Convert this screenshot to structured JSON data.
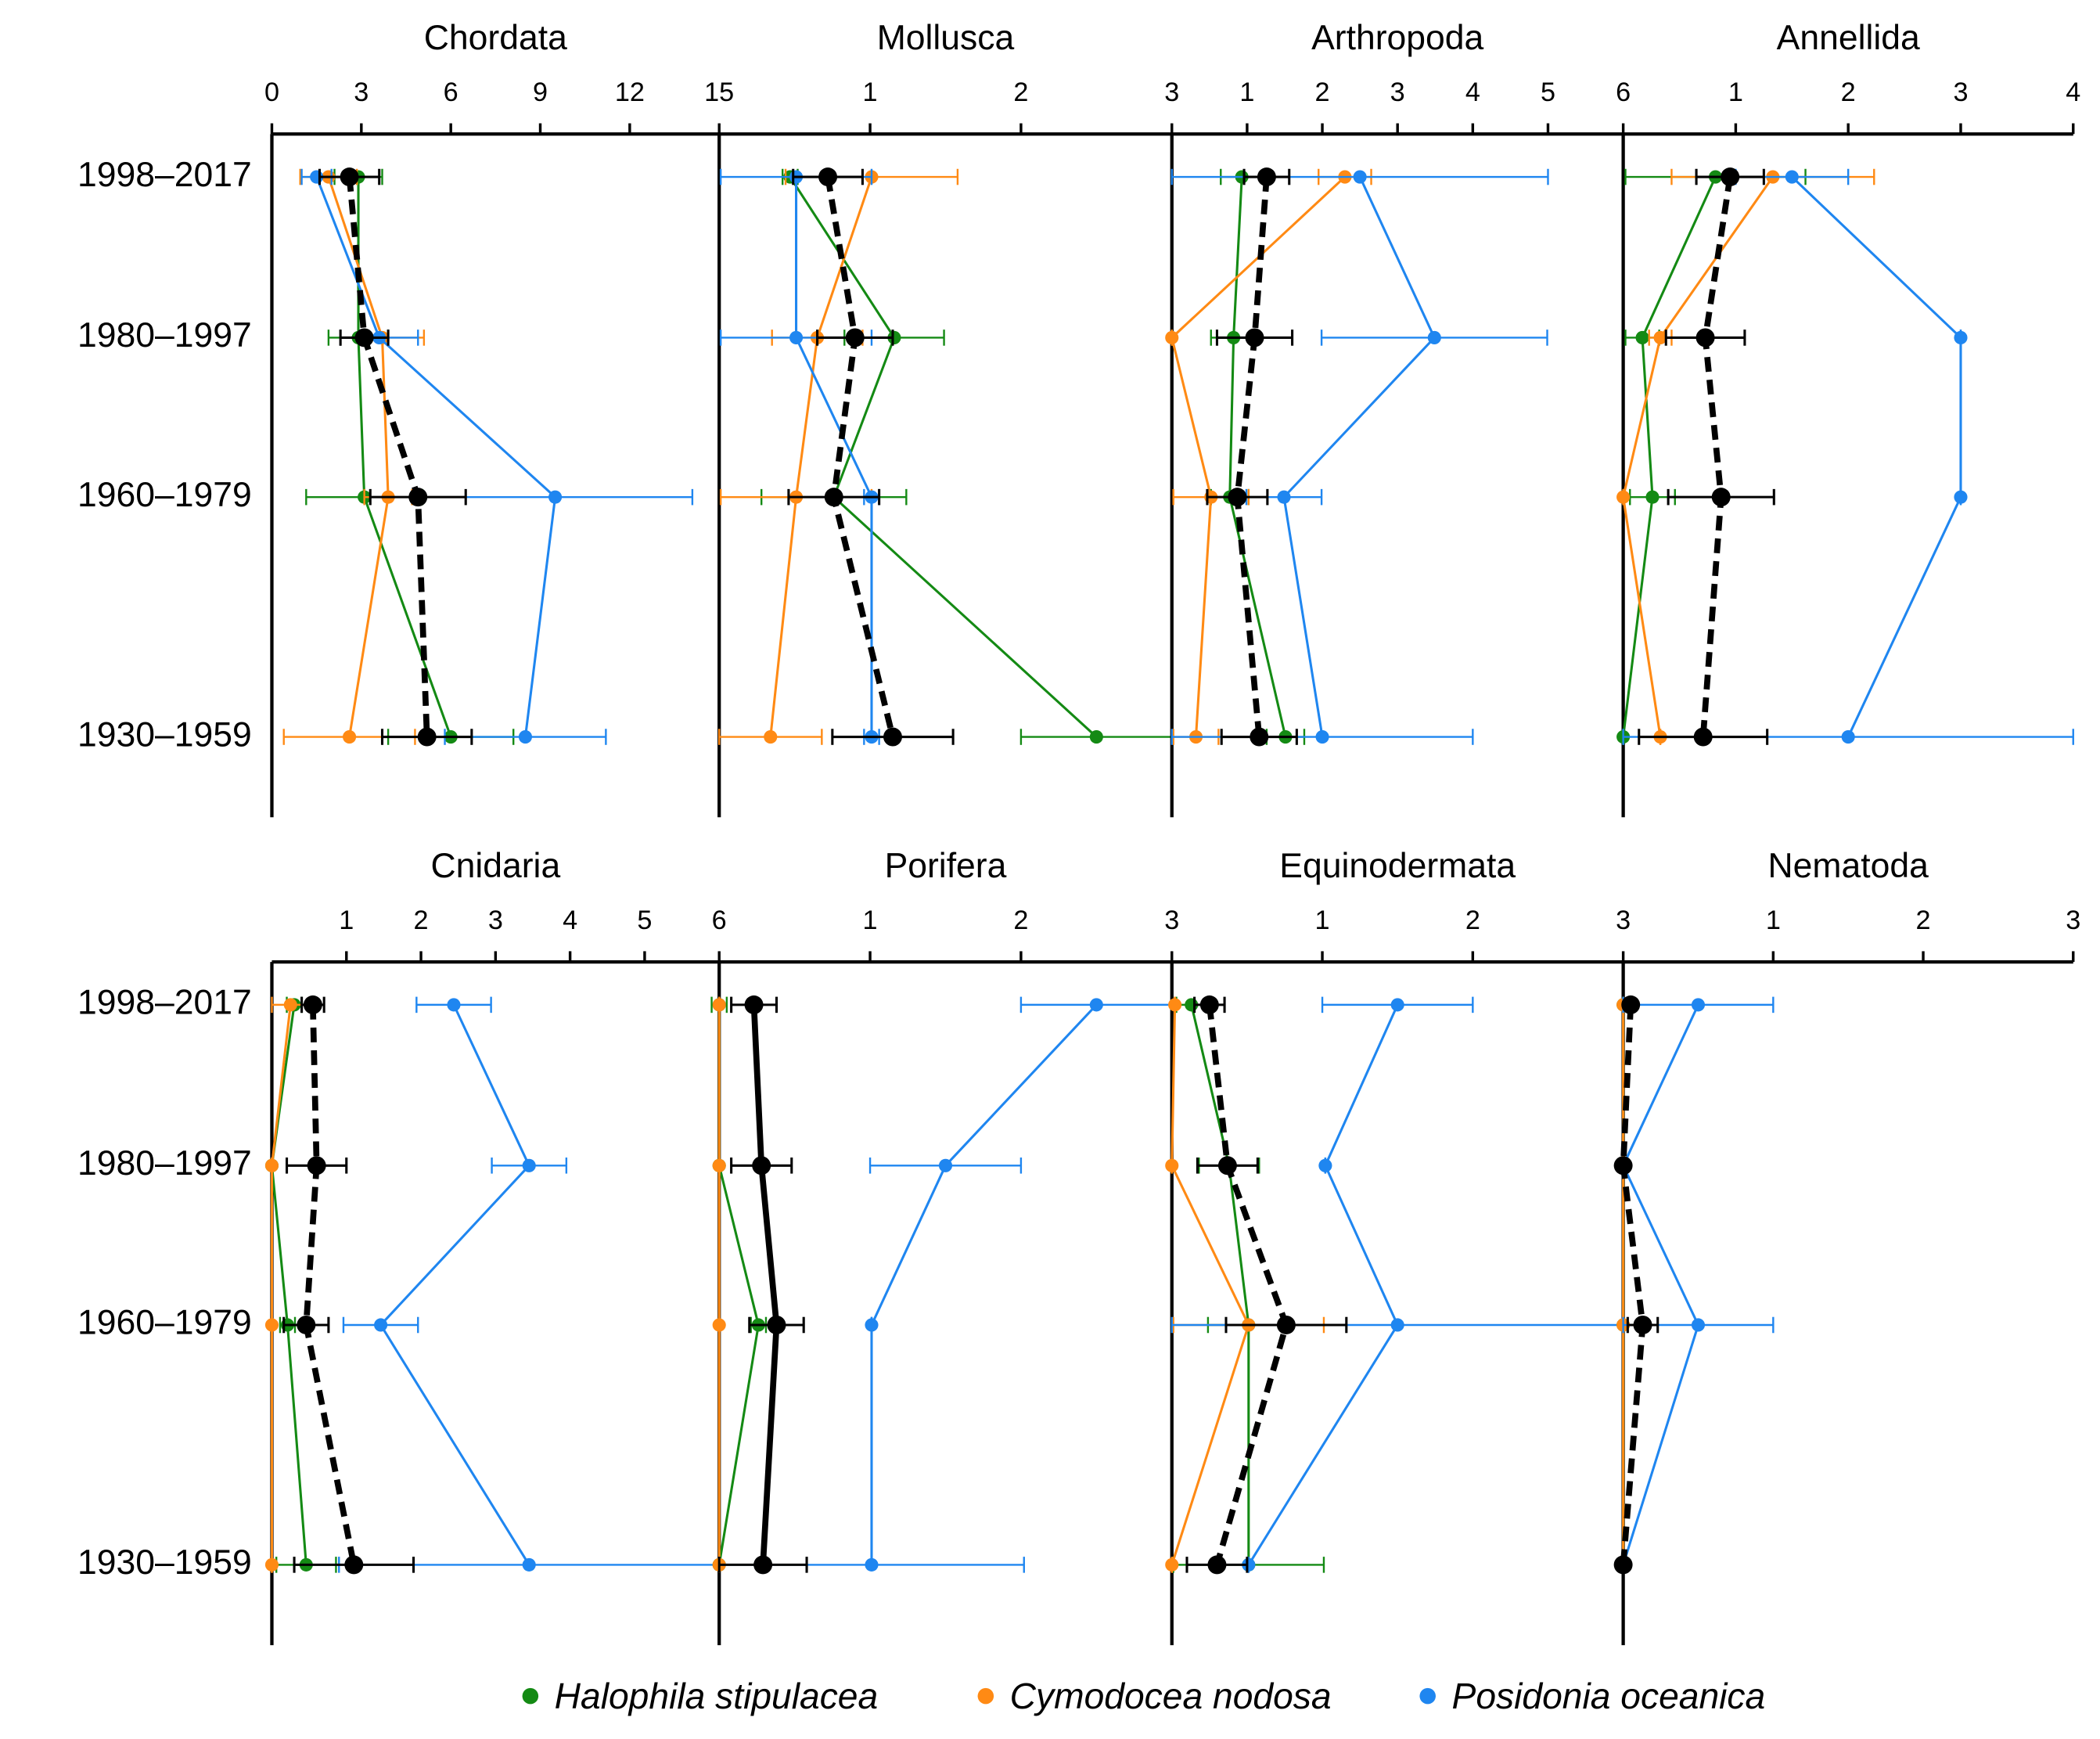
{
  "legend": [
    {
      "name": "Halophila stipulacea",
      "color": "#148a14"
    },
    {
      "name": "Cymodocea nodosa",
      "color": "#ff8a14"
    },
    {
      "name": "Posidonia oceanica",
      "color": "#1f86f0"
    }
  ],
  "chart_data": [
    {
      "type": "line",
      "title": "Chordata",
      "categories": [
        "1998–2017",
        "1980–1997",
        "1960–1979",
        "1930–1959"
      ],
      "xlim": [
        0,
        15
      ],
      "xticks": [
        0,
        3,
        6,
        9,
        12,
        15
      ],
      "series": [
        {
          "color": "#148a14",
          "values": [
            2.9,
            2.9,
            3.1,
            6.0
          ],
          "errors": [
            0.8,
            1.0,
            1.95,
            2.1
          ]
        },
        {
          "color": "#ff8a14",
          "values": [
            1.9,
            3.7,
            3.9,
            2.6
          ],
          "errors": [
            0.95,
            1.4,
            0.8,
            2.2
          ]
        },
        {
          "color": "#1f86f0",
          "values": [
            1.5,
            3.6,
            9.5,
            8.5
          ],
          "errors": [
            0.5,
            1.3,
            4.6,
            2.7
          ]
        },
        {
          "color": "#000000",
          "linestyle": "dashed",
          "values": [
            2.6,
            3.1,
            4.9,
            5.2
          ],
          "errors": [
            1.0,
            0.8,
            1.6,
            1.5
          ]
        }
      ]
    },
    {
      "type": "line",
      "title": "Mollusca",
      "xlim": [
        0,
        3
      ],
      "xticks": [
        1,
        2,
        3
      ],
      "series": [
        {
          "color": "#148a14",
          "values": [
            0.47,
            1.16,
            0.76,
            2.5
          ],
          "errors": [
            0.05,
            0.33,
            0.48,
            0.5
          ]
        },
        {
          "color": "#ff8a14",
          "values": [
            1.01,
            0.65,
            0.51,
            0.34
          ],
          "errors": [
            0.57,
            0.3,
            0.5,
            0.34
          ]
        },
        {
          "color": "#1f86f0",
          "values": [
            0.51,
            0.51,
            1.01,
            1.01
          ],
          "errors": [
            0.5,
            0.5,
            0.05,
            0.05
          ]
        },
        {
          "color": "#000000",
          "linestyle": "dashed",
          "values": [
            0.72,
            0.9,
            0.76,
            1.15
          ],
          "errors": [
            0.23,
            0.25,
            0.3,
            0.4
          ]
        }
      ]
    },
    {
      "type": "line",
      "title": "Arthropoda",
      "xlim": [
        0,
        6
      ],
      "xticks": [
        1,
        2,
        3,
        4,
        5,
        6
      ],
      "series": [
        {
          "color": "#148a14",
          "values": [
            0.93,
            0.82,
            0.77,
            1.51
          ],
          "errors": [
            0.28,
            0.3,
            0.25,
            0.25
          ]
        },
        {
          "color": "#ff8a14",
          "values": [
            2.3,
            0,
            0.52,
            0.32
          ],
          "errors": [
            0.35,
            0,
            0.5,
            0.3
          ]
        },
        {
          "color": "#1f86f0",
          "values": [
            2.5,
            3.49,
            1.49,
            2.0
          ],
          "errors": [
            2.5,
            1.5,
            0.5,
            2.0
          ]
        },
        {
          "color": "#000000",
          "linestyle": "dashed",
          "values": [
            1.26,
            1.1,
            0.87,
            1.16
          ],
          "errors": [
            0.3,
            0.5,
            0.4,
            0.5
          ]
        }
      ]
    },
    {
      "type": "line",
      "title": "Annellida",
      "xlim": [
        0,
        4
      ],
      "xticks": [
        1,
        2,
        3,
        4
      ],
      "series": [
        {
          "color": "#148a14",
          "values": [
            0.82,
            0.17,
            0.26,
            0
          ],
          "errors": [
            0.8,
            0.15,
            0.2,
            0
          ]
        },
        {
          "color": "#ff8a14",
          "values": [
            1.33,
            0.33,
            0,
            0.33
          ],
          "errors": [
            0.9,
            0.1,
            0,
            0
          ]
        },
        {
          "color": "#1f86f0",
          "values": [
            1.5,
            3.0,
            3.0,
            2.0
          ],
          "errors": [
            0.5,
            0,
            0,
            2.0
          ]
        },
        {
          "color": "#000000",
          "linestyle": "dashed",
          "values": [
            0.95,
            0.73,
            0.87,
            0.71
          ],
          "errors": [
            0.3,
            0.35,
            0.47,
            0.57
          ]
        }
      ]
    },
    {
      "type": "line",
      "title": "Cnidaria",
      "categories": [
        "1998–2017",
        "1980–1997",
        "1960–1979",
        "1930–1959"
      ],
      "xlim": [
        0,
        6
      ],
      "xticks": [
        1,
        2,
        3,
        4,
        5,
        6
      ],
      "series": [
        {
          "color": "#148a14",
          "values": [
            0.3,
            0,
            0.21,
            0.46
          ],
          "errors": [
            0.1,
            0,
            0.1,
            0.4
          ]
        },
        {
          "color": "#ff8a14",
          "values": [
            0.25,
            0,
            0,
            0
          ],
          "errors": [
            0.25,
            0,
            0,
            0
          ]
        },
        {
          "color": "#1f86f0",
          "values": [
            2.44,
            3.45,
            1.46,
            3.45
          ],
          "errors": [
            0.5,
            0.5,
            0.5,
            2.55
          ]
        },
        {
          "color": "#000000",
          "linestyle": "dashed",
          "values": [
            0.55,
            0.6,
            0.46,
            1.1
          ],
          "errors": [
            0.15,
            0.4,
            0.3,
            0.8
          ]
        }
      ]
    },
    {
      "type": "line",
      "title": "Porifera",
      "xlim": [
        0,
        3
      ],
      "xticks": [
        1,
        2,
        3
      ],
      "series": [
        {
          "color": "#148a14",
          "values": [
            0,
            0,
            0.26,
            0
          ],
          "errors": [
            0.05,
            0,
            0.05,
            0
          ]
        },
        {
          "color": "#ff8a14",
          "values": [
            0,
            0,
            0,
            0
          ],
          "errors": [
            0,
            0,
            0,
            0
          ]
        },
        {
          "color": "#1f86f0",
          "values": [
            2.5,
            1.5,
            1.01,
            1.01
          ],
          "errors": [
            0.5,
            0.5,
            0,
            1.01
          ]
        },
        {
          "color": "#000000",
          "linestyle": "solid",
          "values": [
            0.23,
            0.28,
            0.38,
            0.29
          ],
          "errors": [
            0.15,
            0.2,
            0.18,
            0.29
          ]
        }
      ]
    },
    {
      "type": "line",
      "title": "Equinodermata",
      "xlim": [
        0,
        3
      ],
      "xticks": [
        1,
        2,
        3
      ],
      "series": [
        {
          "color": "#148a14",
          "values": [
            0.13,
            0.38,
            0.51,
            0.51
          ],
          "errors": [
            0.1,
            0.2,
            0.27,
            0.5
          ]
        },
        {
          "color": "#ff8a14",
          "values": [
            0.02,
            0,
            0.51,
            0
          ],
          "errors": [
            0,
            0,
            0.5,
            0
          ]
        },
        {
          "color": "#1f86f0",
          "values": [
            1.5,
            1.02,
            1.5,
            0.51
          ],
          "errors": [
            0.5,
            0,
            1.5,
            0
          ]
        },
        {
          "color": "#000000",
          "linestyle": "dashed",
          "values": [
            0.25,
            0.37,
            0.76,
            0.3
          ],
          "errors": [
            0.1,
            0.2,
            0.4,
            0.2
          ]
        }
      ]
    },
    {
      "type": "line",
      "title": "Nematoda",
      "xlim": [
        0,
        3
      ],
      "xticks": [
        1,
        2,
        3
      ],
      "series": [
        {
          "color": "#148a14",
          "values": [
            0,
            0,
            0,
            0
          ],
          "errors": [
            0,
            0,
            0,
            0
          ]
        },
        {
          "color": "#ff8a14",
          "values": [
            0,
            0,
            0,
            0
          ],
          "errors": [
            0,
            0,
            0,
            0
          ]
        },
        {
          "color": "#1f86f0",
          "values": [
            0.5,
            0,
            0.5,
            0
          ],
          "errors": [
            0.5,
            0,
            0.5,
            0
          ]
        },
        {
          "color": "#000000",
          "linestyle": "dashed",
          "values": [
            0.05,
            0,
            0.13,
            0
          ],
          "errors": [
            0,
            0,
            0.1,
            0
          ]
        }
      ]
    }
  ]
}
